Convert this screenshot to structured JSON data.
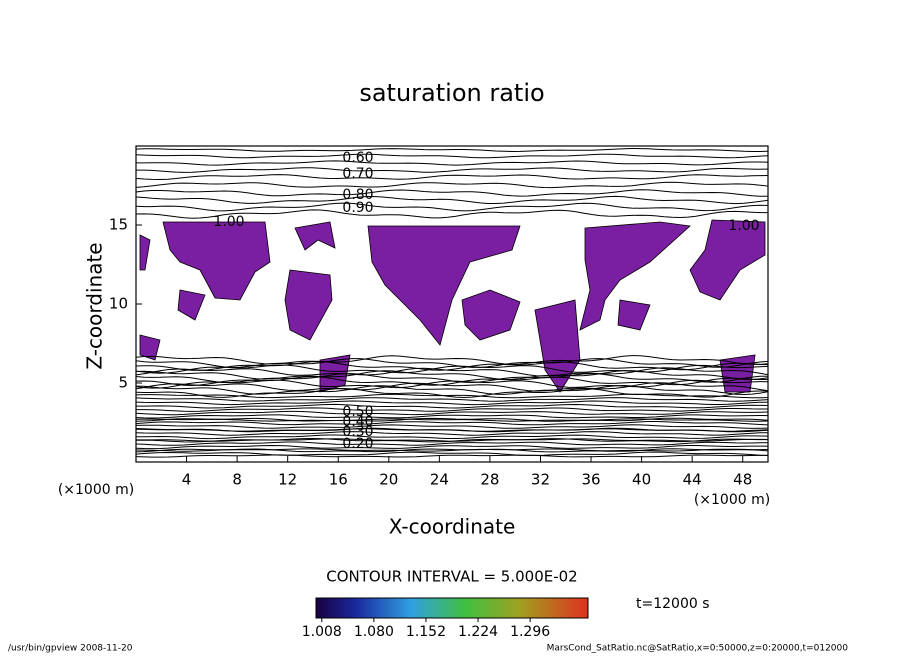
{
  "chart_data": {
    "type": "contour",
    "title": "saturation ratio",
    "x_label": "X-coordinate",
    "y_label": "Z-coordinate",
    "x_unit": "(×1000 m)",
    "y_unit": "(×1000 m)",
    "xlim": [
      0,
      50
    ],
    "ylim": [
      0,
      20
    ],
    "xticks": [
      4,
      8,
      12,
      16,
      20,
      24,
      28,
      32,
      36,
      40,
      44,
      48
    ],
    "yticks": [
      5,
      10,
      15
    ],
    "contour_labels_upper": [
      "0.60",
      "0.70",
      "0.80",
      "0.90"
    ],
    "contour_labels_one": [
      "1.00",
      "1.00"
    ],
    "contour_labels_lower": [
      "0.50",
      "0.40",
      "0.30",
      "0.20"
    ],
    "fill_color": "#7b1fa2",
    "contour_interval": "CONTOUR INTERVAL = 5.000E-02",
    "time_label": "t=12000 s",
    "colorbar": {
      "clim": [
        1.0,
        1.376
      ],
      "ticks": [
        {
          "value": 1.008,
          "label": "1.008"
        },
        {
          "value": 1.08,
          "label": "1.080"
        },
        {
          "value": 1.152,
          "label": "1.152"
        },
        {
          "value": 1.224,
          "label": "1.224"
        },
        {
          "value": 1.296,
          "label": "1.296"
        }
      ]
    },
    "footer_left": "/usr/bin/gpview  2008-11-20",
    "footer_right": "MarsCond_SatRatio.nc@SatRatio,x=0:50000,z=0:20000,t=012000"
  }
}
